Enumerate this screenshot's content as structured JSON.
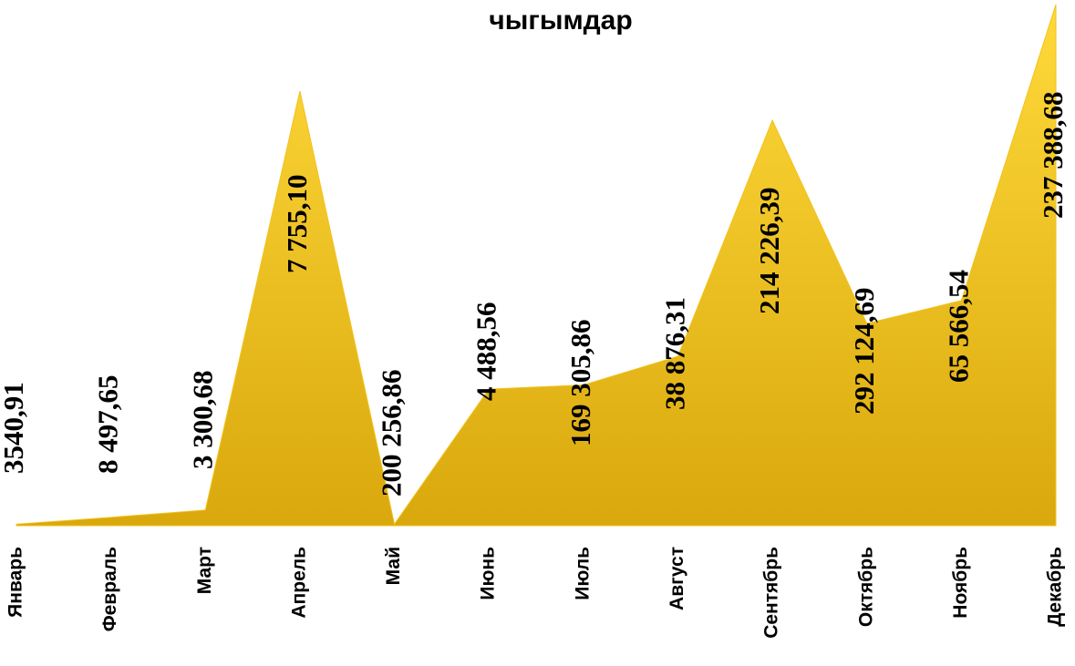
{
  "chart_data": {
    "type": "area",
    "title": "чыгымдар",
    "categories": [
      "Январь",
      "Февраль",
      "Март",
      "Апрель",
      "Май",
      "Июнь",
      "Июль",
      "Август",
      "Сентябрь",
      "Октябрь",
      "Ноябрь",
      "Декабрь"
    ],
    "values": [
      0.3,
      1.6,
      3,
      83.4,
      0.3,
      26.2,
      27,
      32.5,
      77.8,
      38.8,
      43.2,
      100
    ],
    "annotations": [
      "3540,91",
      "8 497,65",
      "3 300,68",
      "7 755,10",
      "200 256,86",
      "4 488,56",
      "169 305,86",
      "38 876,31",
      "214 226,39",
      "292 124,69",
      "65 566,54",
      "237 388,68"
    ],
    "color": "#f2c21b",
    "ylim": [
      0,
      100
    ]
  }
}
